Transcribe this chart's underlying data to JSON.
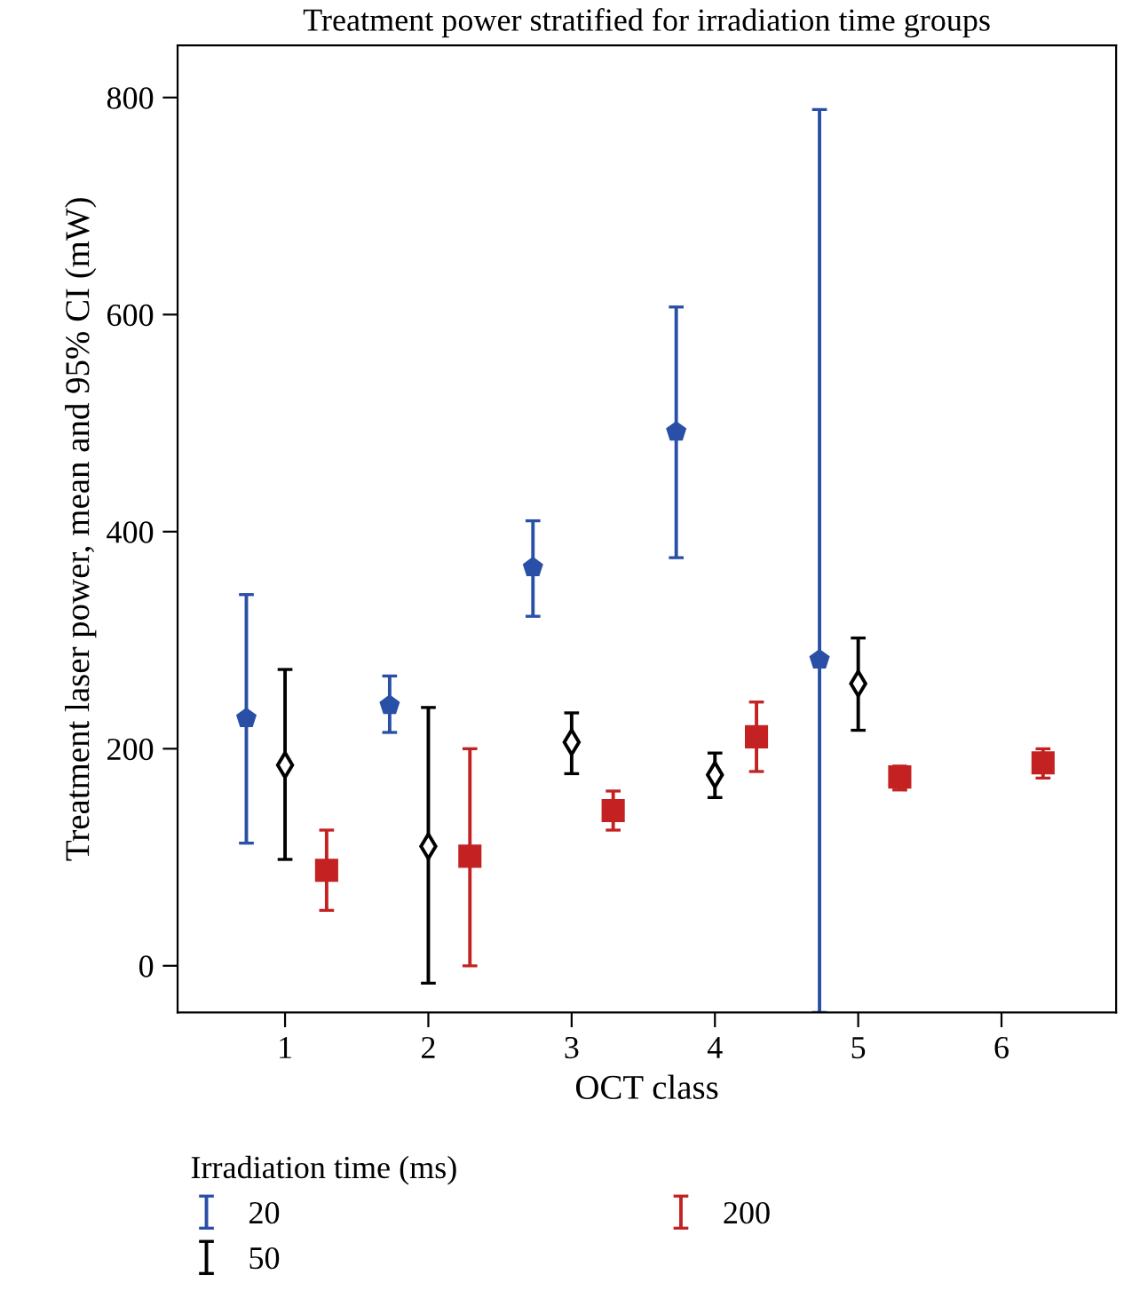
{
  "chart_data": {
    "type": "scatter",
    "title": "Treatment power stratified for irradiation time groups",
    "xlabel": "OCT class",
    "ylabel": "Treatment laser power, mean and 95% CI (mW)",
    "legend_title": "Irradiation time (ms)",
    "legend": "bottom",
    "grid": false,
    "xlim": [
      0.25,
      6.8
    ],
    "xticks": [
      1,
      2,
      3,
      4,
      5,
      6
    ],
    "ylim": [
      -43,
      848
    ],
    "yticks": [
      0,
      200,
      400,
      600,
      800
    ],
    "series": [
      {
        "name": "20",
        "color": "#2a4fa6",
        "x": [
          0.73,
          1.73,
          2.73,
          3.73,
          4.73
        ],
        "values": [
          228,
          240,
          367,
          492,
          282
        ],
        "errors": [
          [
            113,
            342
          ],
          [
            215,
            267
          ],
          [
            322,
            410
          ],
          [
            376,
            607
          ],
          [
            -43,
            789
          ]
        ]
      },
      {
        "name": "50",
        "color": "#000000",
        "marker": "diamond",
        "x": [
          1,
          2,
          3,
          4,
          5
        ],
        "values": [
          185,
          110,
          206,
          176,
          260
        ],
        "errors": [
          [
            98,
            273
          ],
          [
            -16,
            238
          ],
          [
            177,
            233
          ],
          [
            155,
            196
          ],
          [
            217,
            302
          ]
        ]
      },
      {
        "name": "200",
        "color": "#c42222",
        "marker": "square",
        "x": [
          1.29,
          2.29,
          3.29,
          4.29,
          5.29,
          6.29
        ],
        "values": [
          88,
          101,
          143,
          211,
          174,
          187
        ],
        "errors": [
          [
            51,
            125
          ],
          [
            0,
            200
          ],
          [
            125,
            161
          ],
          [
            179,
            243
          ],
          [
            162,
            184
          ],
          [
            173,
            200
          ]
        ]
      }
    ]
  }
}
